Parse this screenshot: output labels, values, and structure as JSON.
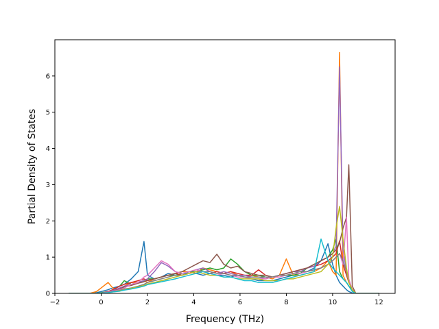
{
  "chart_data": {
    "type": "line",
    "title": "",
    "xlabel": "Frequency (THz)",
    "ylabel": "Partial Density of States",
    "xlim": [
      -2.0,
      12.7
    ],
    "ylim": [
      0,
      7.0
    ],
    "xticks": [
      -2,
      0,
      2,
      4,
      6,
      8,
      10,
      12
    ],
    "xtick_labels": [
      "−2",
      "0",
      "2",
      "4",
      "6",
      "8",
      "10",
      "12"
    ],
    "yticks": [
      0,
      1,
      2,
      3,
      4,
      5,
      6
    ],
    "ytick_labels": [
      "0",
      "1",
      "2",
      "3",
      "4",
      "5",
      "6"
    ],
    "grid": false,
    "legend": "none",
    "x": [
      -1.4,
      -0.5,
      -0.2,
      0.0,
      0.3,
      0.5,
      0.8,
      1.0,
      1.3,
      1.6,
      1.85,
      2.0,
      2.3,
      2.6,
      2.9,
      3.2,
      3.5,
      3.8,
      4.1,
      4.4,
      4.7,
      5.0,
      5.3,
      5.6,
      5.9,
      6.2,
      6.5,
      6.8,
      7.1,
      7.4,
      7.7,
      8.0,
      8.3,
      8.6,
      8.9,
      9.2,
      9.5,
      9.8,
      10.0,
      10.15,
      10.3,
      10.45,
      10.6,
      10.7,
      10.85,
      11.0,
      12.0
    ],
    "series": [
      {
        "color": "#1f77b4",
        "values": [
          0,
          0,
          0.02,
          0.05,
          0.1,
          0.15,
          0.2,
          0.25,
          0.4,
          0.6,
          1.43,
          0.5,
          0.4,
          0.45,
          0.55,
          0.5,
          0.5,
          0.6,
          0.55,
          0.5,
          0.55,
          0.5,
          0.5,
          0.45,
          0.5,
          0.45,
          0.4,
          0.35,
          0.35,
          0.35,
          0.4,
          0.45,
          0.5,
          0.55,
          0.6,
          0.7,
          0.9,
          1.37,
          0.8,
          0.5,
          0.3,
          0.2,
          0.1,
          0.05,
          0.01,
          0,
          0
        ]
      },
      {
        "color": "#ff7f0e",
        "values": [
          0,
          0,
          0.05,
          0.15,
          0.3,
          0.15,
          0.1,
          0.2,
          0.3,
          0.3,
          0.35,
          0.3,
          0.4,
          0.45,
          0.5,
          0.55,
          0.6,
          0.6,
          0.55,
          0.7,
          0.65,
          0.6,
          0.55,
          0.6,
          0.5,
          0.5,
          0.5,
          0.45,
          0.45,
          0.4,
          0.5,
          0.95,
          0.5,
          0.5,
          0.55,
          0.6,
          0.7,
          0.9,
          0.6,
          0.5,
          6.65,
          0.5,
          0.3,
          0.2,
          0.1,
          0,
          0
        ]
      },
      {
        "color": "#2ca02c",
        "values": [
          0,
          0,
          0,
          0.02,
          0.05,
          0.1,
          0.2,
          0.35,
          0.25,
          0.3,
          0.35,
          0.4,
          0.4,
          0.45,
          0.5,
          0.5,
          0.55,
          0.6,
          0.6,
          0.65,
          0.7,
          0.65,
          0.7,
          0.95,
          0.8,
          0.6,
          0.5,
          0.5,
          0.45,
          0.45,
          0.5,
          0.5,
          0.5,
          0.55,
          0.7,
          0.8,
          0.9,
          1.0,
          1.2,
          1.5,
          0.6,
          0.4,
          0.3,
          0.2,
          0.1,
          0,
          0
        ]
      },
      {
        "color": "#d62728",
        "values": [
          0,
          0,
          0,
          0.01,
          0.05,
          0.1,
          0.2,
          0.25,
          0.3,
          0.35,
          0.4,
          0.35,
          0.4,
          0.45,
          0.5,
          0.55,
          0.5,
          0.55,
          0.6,
          0.6,
          0.55,
          0.6,
          0.55,
          0.6,
          0.55,
          0.5,
          0.5,
          0.65,
          0.5,
          0.45,
          0.5,
          0.55,
          0.6,
          0.65,
          0.7,
          0.75,
          0.8,
          0.9,
          1.0,
          1.1,
          1.45,
          0.8,
          0.5,
          0.3,
          0.1,
          0,
          0
        ]
      },
      {
        "color": "#9467bd",
        "values": [
          0,
          0,
          0,
          0.01,
          0.04,
          0.08,
          0.15,
          0.2,
          0.25,
          0.3,
          0.35,
          0.4,
          0.6,
          0.85,
          0.75,
          0.6,
          0.55,
          0.6,
          0.65,
          0.7,
          0.6,
          0.55,
          0.6,
          0.55,
          0.5,
          0.5,
          0.45,
          0.45,
          0.4,
          0.45,
          0.5,
          0.55,
          0.6,
          0.6,
          0.7,
          0.75,
          0.9,
          1.0,
          1.1,
          1.3,
          6.25,
          1.2,
          0.6,
          0.3,
          0.1,
          0,
          0
        ]
      },
      {
        "color": "#8c564b",
        "values": [
          0,
          0,
          0,
          0.01,
          0.03,
          0.06,
          0.12,
          0.18,
          0.22,
          0.28,
          0.32,
          0.36,
          0.4,
          0.45,
          0.5,
          0.55,
          0.6,
          0.7,
          0.8,
          0.9,
          0.85,
          1.08,
          0.8,
          0.7,
          0.75,
          0.6,
          0.55,
          0.5,
          0.5,
          0.45,
          0.5,
          0.55,
          0.6,
          0.65,
          0.7,
          0.8,
          0.9,
          1.0,
          1.1,
          1.2,
          1.4,
          1.8,
          2.1,
          3.55,
          0.2,
          0,
          0
        ]
      },
      {
        "color": "#e377c2",
        "values": [
          0,
          0,
          0,
          0.01,
          0.03,
          0.06,
          0.1,
          0.15,
          0.25,
          0.3,
          0.45,
          0.5,
          0.7,
          0.9,
          0.8,
          0.6,
          0.55,
          0.6,
          0.65,
          0.6,
          0.55,
          0.5,
          0.55,
          0.5,
          0.45,
          0.45,
          0.4,
          0.4,
          0.4,
          0.45,
          0.45,
          0.5,
          0.55,
          0.55,
          0.6,
          0.65,
          0.7,
          0.8,
          0.9,
          1.0,
          1.1,
          0.8,
          2.1,
          0.4,
          0.1,
          0,
          0
        ]
      },
      {
        "color": "#7f7f7f",
        "values": [
          0,
          0,
          0,
          0.01,
          0.02,
          0.05,
          0.08,
          0.12,
          0.15,
          0.2,
          0.25,
          0.3,
          0.35,
          0.4,
          0.45,
          0.5,
          0.5,
          0.55,
          0.6,
          0.6,
          0.6,
          0.55,
          0.55,
          0.5,
          0.5,
          0.45,
          0.45,
          0.45,
          0.45,
          0.45,
          0.5,
          0.5,
          0.55,
          0.6,
          0.6,
          0.65,
          0.7,
          0.8,
          0.9,
          1.0,
          1.1,
          0.9,
          0.6,
          0.3,
          0.1,
          0,
          0
        ]
      },
      {
        "color": "#bcbd22",
        "values": [
          0,
          0,
          0,
          0.01,
          0.02,
          0.04,
          0.07,
          0.1,
          0.14,
          0.18,
          0.22,
          0.26,
          0.3,
          0.35,
          0.4,
          0.45,
          0.5,
          0.55,
          0.6,
          0.55,
          0.5,
          0.5,
          0.45,
          0.45,
          0.4,
          0.4,
          0.4,
          0.4,
          0.35,
          0.35,
          0.35,
          0.4,
          0.4,
          0.45,
          0.5,
          0.55,
          0.6,
          0.8,
          1.0,
          1.8,
          2.4,
          1.5,
          0.7,
          0.3,
          0.1,
          0,
          0
        ]
      },
      {
        "color": "#17becf",
        "values": [
          0,
          0,
          0,
          0.01,
          0.02,
          0.04,
          0.06,
          0.09,
          0.12,
          0.16,
          0.2,
          0.24,
          0.28,
          0.32,
          0.36,
          0.4,
          0.45,
          0.5,
          0.55,
          0.6,
          0.55,
          0.5,
          0.45,
          0.45,
          0.4,
          0.35,
          0.35,
          0.3,
          0.3,
          0.3,
          0.35,
          0.4,
          0.45,
          0.5,
          0.55,
          0.6,
          1.5,
          0.9,
          0.7,
          0.6,
          0.5,
          0.4,
          0.3,
          0.2,
          0.05,
          0,
          0
        ]
      }
    ]
  }
}
